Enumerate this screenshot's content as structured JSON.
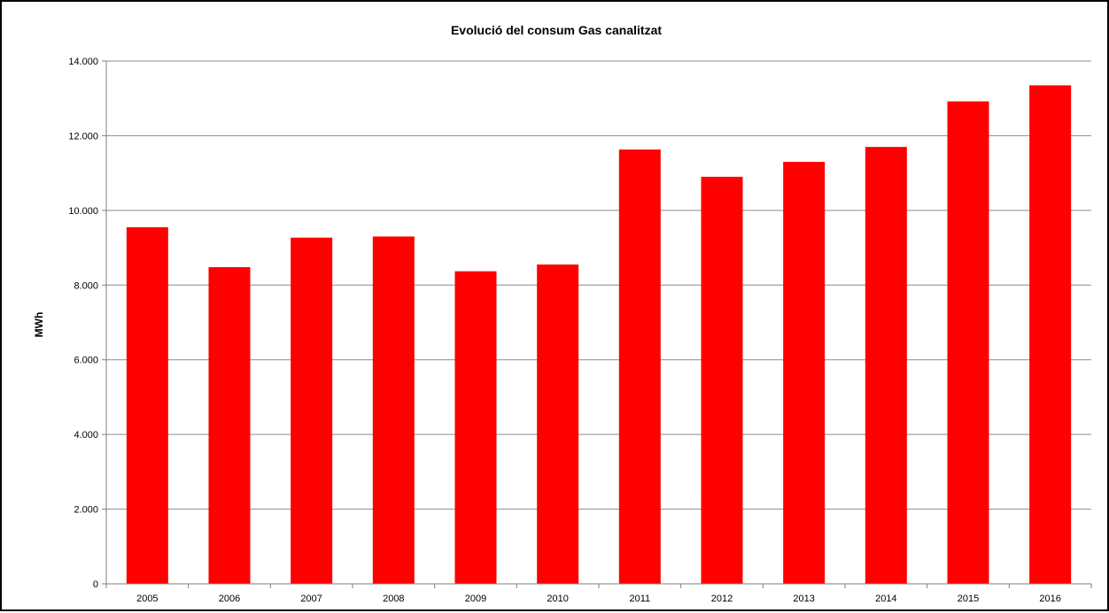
{
  "chart_data": {
    "type": "bar",
    "title": "Evolució del consum Gas canalitzat",
    "xlabel": "",
    "ylabel": "MWh",
    "categories": [
      "2005",
      "2006",
      "2007",
      "2008",
      "2009",
      "2010",
      "2011",
      "2012",
      "2013",
      "2014",
      "2015",
      "2016"
    ],
    "values": [
      9550,
      8480,
      9270,
      9300,
      8370,
      8550,
      11630,
      10900,
      11300,
      11700,
      12920,
      13350
    ],
    "ylim": [
      0,
      14000
    ],
    "yticks": [
      0,
      2000,
      4000,
      6000,
      8000,
      10000,
      12000,
      14000
    ],
    "ytick_labels": [
      "0",
      "2.000",
      "4.000",
      "6.000",
      "8.000",
      "10.000",
      "12.000",
      "14.000"
    ],
    "grid": true,
    "legend": "none",
    "colors": {
      "bar": "#ff0000",
      "grid": "#8c8c8c",
      "axis": "#7f7f7f"
    }
  }
}
